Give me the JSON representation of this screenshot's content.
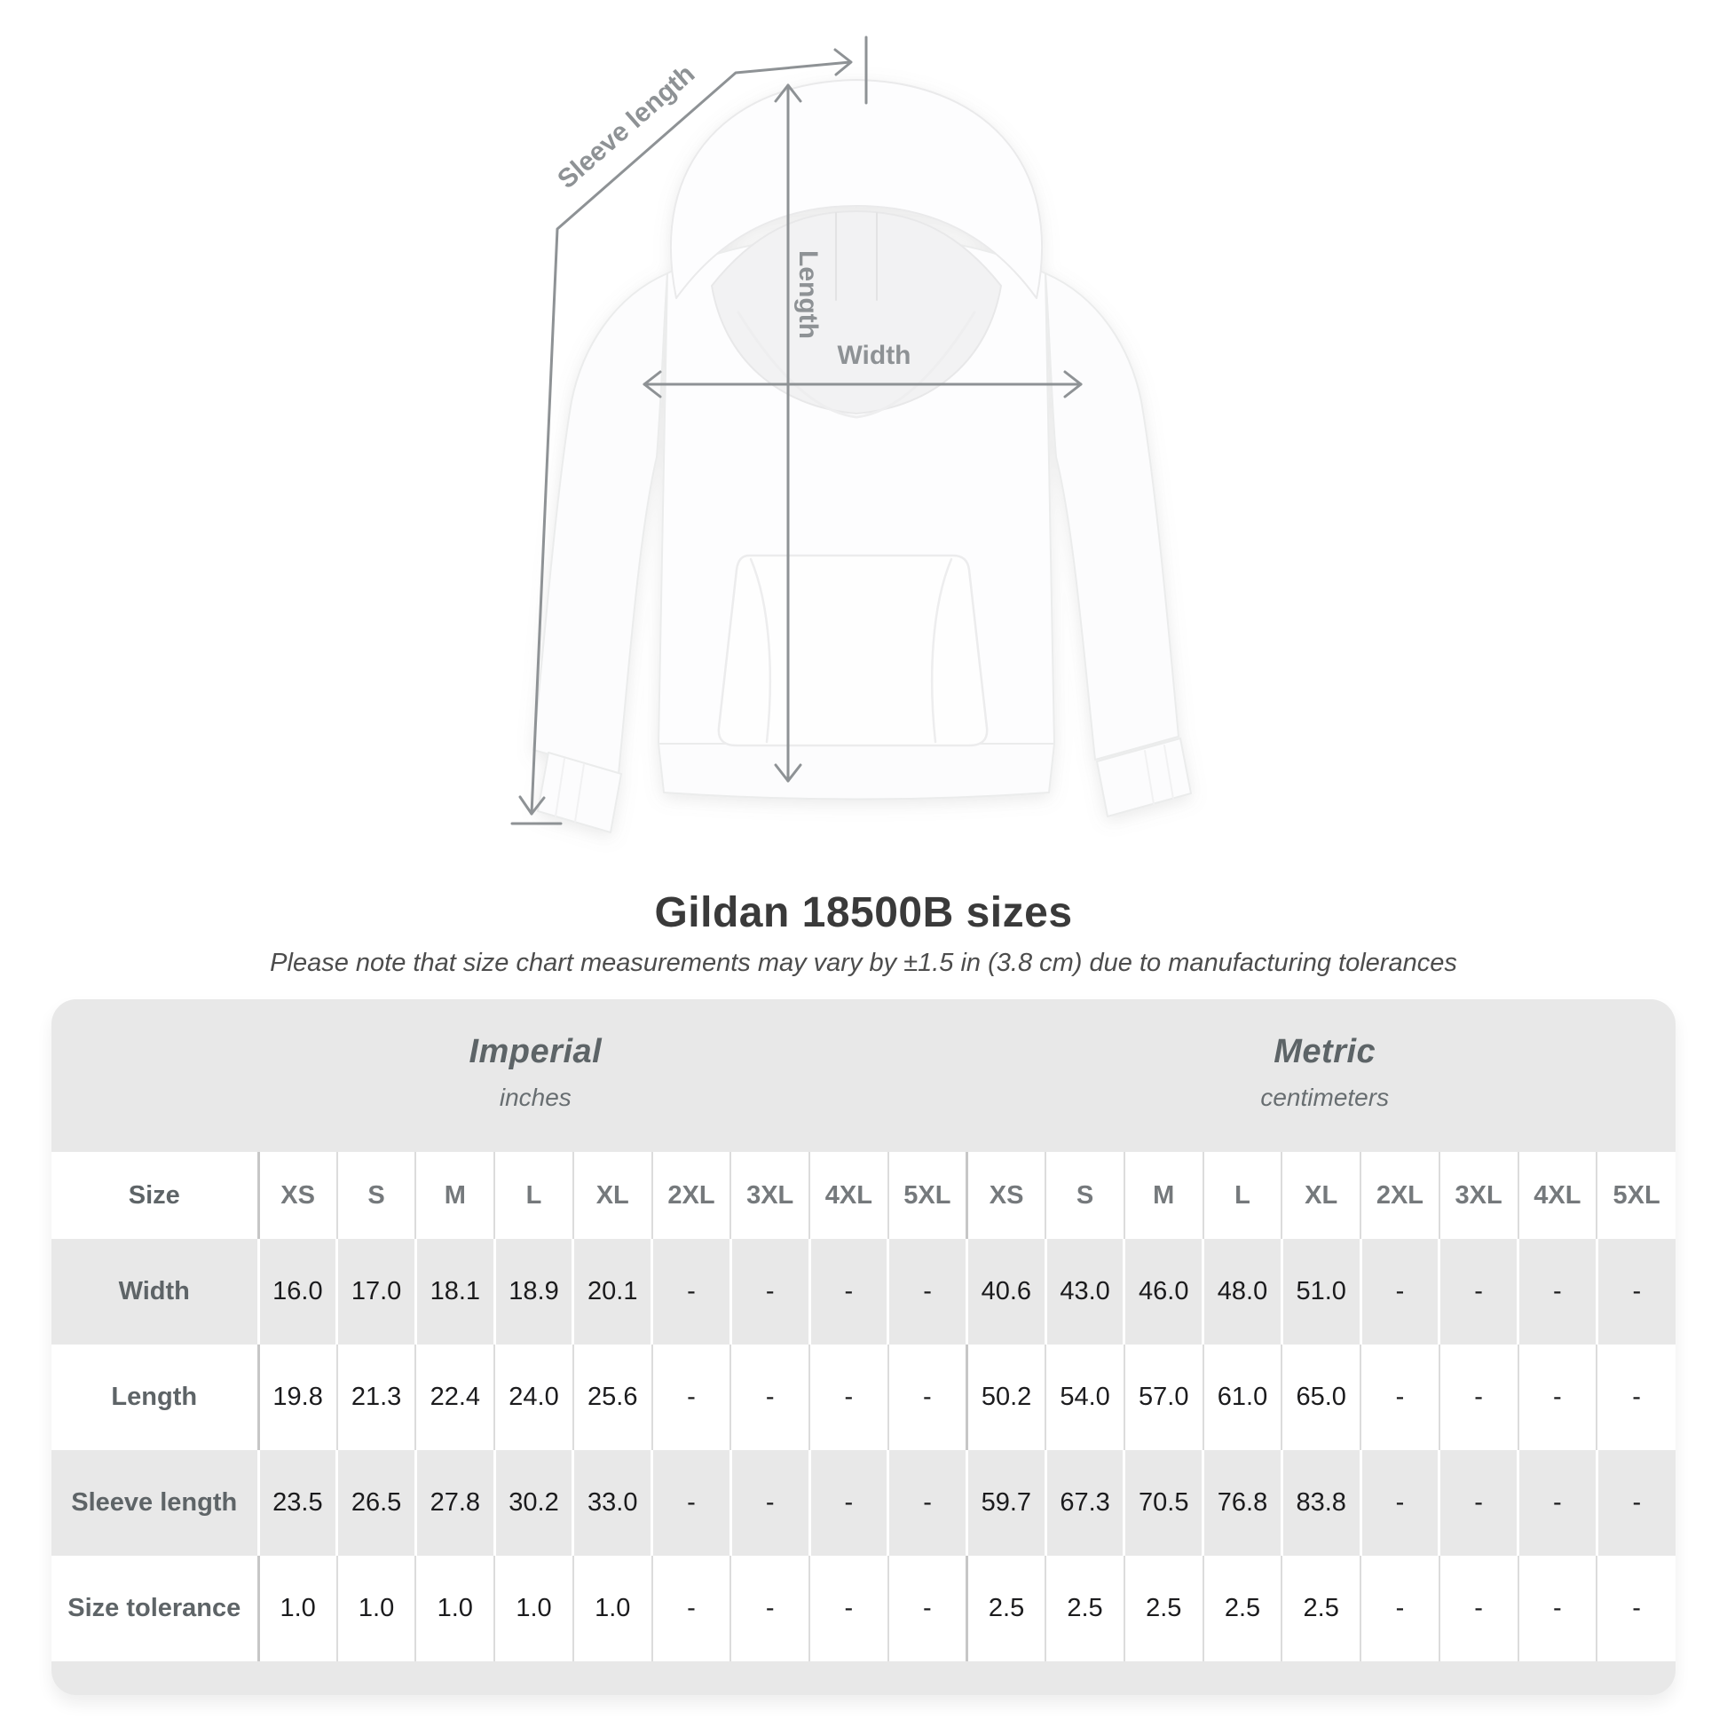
{
  "figure": {
    "labels": {
      "sleeve_length": "Sleeve length",
      "length": "Length",
      "width": "Width"
    },
    "annotation_color": "#8e9295"
  },
  "chart_data": {
    "type": "table",
    "title": "Gildan 18500B sizes",
    "subtitle": "Please note that size chart measurements may vary by ±1.5 in (3.8 cm) due to manufacturing tolerances",
    "groups": [
      {
        "label": "Imperial",
        "unit": "inches"
      },
      {
        "label": "Metric",
        "unit": "centimeters"
      }
    ],
    "size_label": "Size",
    "sizes": [
      "XS",
      "S",
      "M",
      "L",
      "XL",
      "2XL",
      "3XL",
      "4XL",
      "5XL"
    ],
    "rows": [
      {
        "label": "Width",
        "imperial": [
          "16.0",
          "17.0",
          "18.1",
          "18.9",
          "20.1",
          "-",
          "-",
          "-",
          "-"
        ],
        "metric": [
          "40.6",
          "43.0",
          "46.0",
          "48.0",
          "51.0",
          "-",
          "-",
          "-",
          "-"
        ]
      },
      {
        "label": "Length",
        "imperial": [
          "19.8",
          "21.3",
          "22.4",
          "24.0",
          "25.6",
          "-",
          "-",
          "-",
          "-"
        ],
        "metric": [
          "50.2",
          "54.0",
          "57.0",
          "61.0",
          "65.0",
          "-",
          "-",
          "-",
          "-"
        ]
      },
      {
        "label": "Sleeve length",
        "imperial": [
          "23.5",
          "26.5",
          "27.8",
          "30.2",
          "33.0",
          "-",
          "-",
          "-",
          "-"
        ],
        "metric": [
          "59.7",
          "67.3",
          "70.5",
          "76.8",
          "83.8",
          "-",
          "-",
          "-",
          "-"
        ]
      },
      {
        "label": "Size tolerance",
        "imperial": [
          "1.0",
          "1.0",
          "1.0",
          "1.0",
          "1.0",
          "-",
          "-",
          "-",
          "-"
        ],
        "metric": [
          "2.5",
          "2.5",
          "2.5",
          "2.5",
          "2.5",
          "-",
          "-",
          "-",
          "-"
        ]
      }
    ]
  }
}
